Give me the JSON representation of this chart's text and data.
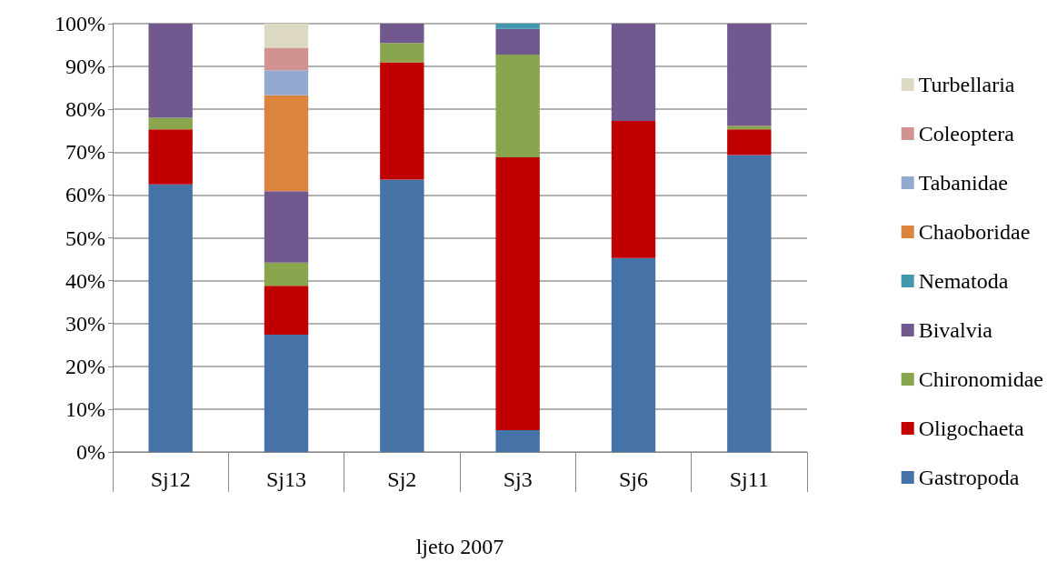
{
  "chart_data": {
    "type": "bar",
    "stacked": true,
    "xlabel": "ljeto 2007",
    "categories": [
      "Sj12",
      "Sj13",
      "Sj2",
      "Sj3",
      "Sj6",
      "Sj11"
    ],
    "series": [
      {
        "name": "Gastropoda",
        "color": "#4572a7",
        "values": [
          62.5,
          27.4,
          63.6,
          5.1,
          45.3,
          69.3
        ]
      },
      {
        "name": "Oligochaeta",
        "color": "#c00000",
        "values": [
          12.8,
          11.4,
          27.4,
          63.7,
          32.0,
          6.0
        ]
      },
      {
        "name": "Chironomidae",
        "color": "#89a54e",
        "values": [
          2.7,
          5.4,
          4.5,
          24.0,
          null,
          0.8
        ]
      },
      {
        "name": "Bivalvia",
        "color": "#71588f",
        "values": [
          22.0,
          16.7,
          4.5,
          6.0,
          22.7,
          23.9
        ]
      },
      {
        "name": "Nematoda",
        "color": "#4198af",
        "values": [
          null,
          null,
          null,
          1.2,
          null,
          null
        ]
      },
      {
        "name": "Chaoboridae",
        "color": "#db843d",
        "values": [
          null,
          22.4,
          null,
          null,
          null,
          null
        ]
      },
      {
        "name": "Tabanidae",
        "color": "#93a9cf",
        "values": [
          null,
          5.8,
          null,
          null,
          null,
          null
        ]
      },
      {
        "name": "Coleoptera",
        "color": "#d19392",
        "values": [
          null,
          5.3,
          null,
          null,
          null,
          null
        ]
      },
      {
        "name": "Turbellaria",
        "color": "#ddd9c3",
        "values": [
          null,
          5.6,
          null,
          null,
          null,
          null
        ]
      }
    ],
    "ylim": [
      0,
      100
    ],
    "yticks": [
      {
        "value": 0,
        "label": "0%"
      },
      {
        "value": 10,
        "label": "10%"
      },
      {
        "value": 20,
        "label": "20%"
      },
      {
        "value": 30,
        "label": "30%"
      },
      {
        "value": 40,
        "label": "40%"
      },
      {
        "value": 50,
        "label": "50%"
      },
      {
        "value": 60,
        "label": "60%"
      },
      {
        "value": 70,
        "label": "70%"
      },
      {
        "value": 80,
        "label": "80%"
      },
      {
        "value": 90,
        "label": "90%"
      },
      {
        "value": 100,
        "label": "100%"
      }
    ],
    "grid": "y",
    "legend": "right"
  }
}
